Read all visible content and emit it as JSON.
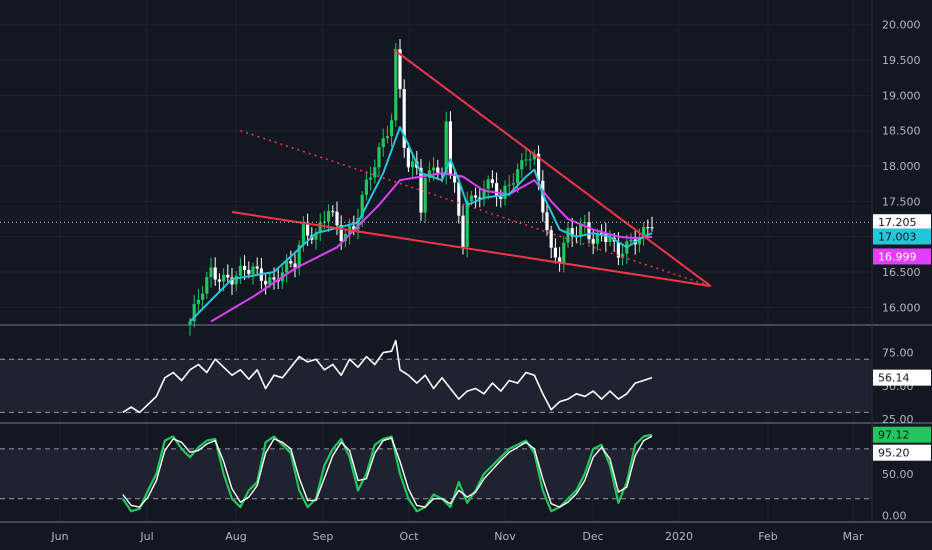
{
  "chart_data": [
    {
      "type": "candlestick",
      "panel": "price",
      "x_labels": [
        "Jun",
        "Jul",
        "Aug",
        "Sep",
        "Oct",
        "Nov",
        "Dec",
        "2020",
        "Feb",
        "Mar"
      ],
      "y_ticks": [
        "16.000",
        "16.500",
        "17.000",
        "17.500",
        "18.000",
        "18.500",
        "19.000",
        "19.500",
        "20.000"
      ],
      "ylim": [
        15.75,
        20.35
      ],
      "last_price_label": "17.205",
      "ma_fast_label": "17.003",
      "ma_slow_label": "16.999",
      "close_path": [
        [
          0.0,
          15.8
        ],
        [
          5.0,
          16.5
        ],
        [
          10.0,
          16.4
        ],
        [
          15.0,
          16.55
        ],
        [
          20.0,
          16.35
        ],
        [
          25.0,
          16.65
        ],
        [
          27.0,
          17.15
        ],
        [
          30.0,
          17.0
        ],
        [
          33.0,
          17.35
        ],
        [
          36.0,
          17.05
        ],
        [
          39.0,
          17.15
        ],
        [
          42.0,
          17.7
        ],
        [
          44.0,
          18.0
        ],
        [
          46.0,
          18.4
        ],
        [
          48.0,
          18.7
        ],
        [
          49.0,
          19.6
        ],
        [
          50.0,
          19.1
        ],
        [
          51.0,
          18.3
        ],
        [
          52.0,
          17.9
        ],
        [
          54.0,
          18.0
        ],
        [
          55.0,
          17.4
        ],
        [
          56.0,
          17.8
        ],
        [
          58.0,
          18.1
        ],
        [
          60.0,
          17.8
        ],
        [
          61.0,
          18.6
        ],
        [
          62.0,
          17.9
        ],
        [
          63.0,
          17.7
        ],
        [
          64.0,
          17.2
        ],
        [
          65.0,
          16.9
        ],
        [
          66.0,
          17.6
        ],
        [
          68.0,
          17.55
        ],
        [
          70.0,
          17.7
        ],
        [
          72.0,
          17.7
        ],
        [
          74.0,
          17.5
        ],
        [
          76.0,
          17.8
        ],
        [
          78.0,
          17.95
        ],
        [
          80.0,
          18.15
        ],
        [
          82.0,
          18.05
        ],
        [
          84.0,
          17.4
        ],
        [
          86.0,
          16.8
        ],
        [
          88.0,
          16.75
        ],
        [
          90.0,
          17.05
        ],
        [
          92.0,
          17.0
        ],
        [
          94.0,
          17.15
        ],
        [
          96.0,
          16.95
        ],
        [
          98.0,
          17.1
        ],
        [
          100.0,
          16.95
        ],
        [
          102.0,
          16.7
        ],
        [
          104.0,
          16.85
        ],
        [
          106.0,
          17.0
        ],
        [
          108.0,
          17.1
        ],
        [
          110.0,
          17.2
        ]
      ],
      "ma_fast": [
        [
          0.0,
          15.8
        ],
        [
          10.0,
          16.4
        ],
        [
          20.0,
          16.5
        ],
        [
          30.0,
          17.05
        ],
        [
          40.0,
          17.2
        ],
        [
          46.0,
          17.9
        ],
        [
          50.0,
          18.55
        ],
        [
          52.0,
          18.3
        ],
        [
          55.0,
          17.9
        ],
        [
          60.0,
          17.8
        ],
        [
          62.0,
          18.1
        ],
        [
          64.0,
          17.8
        ],
        [
          66.0,
          17.45
        ],
        [
          70.0,
          17.55
        ],
        [
          76.0,
          17.6
        ],
        [
          80.0,
          17.85
        ],
        [
          82.0,
          17.95
        ],
        [
          84.0,
          17.6
        ],
        [
          88.0,
          17.1
        ],
        [
          92.0,
          17.0
        ],
        [
          96.0,
          17.05
        ],
        [
          100.0,
          17.0
        ],
        [
          104.0,
          16.85
        ],
        [
          108.0,
          17.0
        ],
        [
          110.0,
          17.05
        ]
      ],
      "ma_slow": [
        [
          5.0,
          15.8
        ],
        [
          15.0,
          16.15
        ],
        [
          25.0,
          16.55
        ],
        [
          35.0,
          16.85
        ],
        [
          45.0,
          17.45
        ],
        [
          50.0,
          17.8
        ],
        [
          55.0,
          17.85
        ],
        [
          60.0,
          17.9
        ],
        [
          65.0,
          17.85
        ],
        [
          70.0,
          17.65
        ],
        [
          76.0,
          17.6
        ],
        [
          82.0,
          17.8
        ],
        [
          86.0,
          17.5
        ],
        [
          90.0,
          17.25
        ],
        [
          96.0,
          17.1
        ],
        [
          102.0,
          17.0
        ],
        [
          106.0,
          16.98
        ],
        [
          110.0,
          17.0
        ]
      ],
      "trendlines": [
        {
          "style": "solid",
          "color": "#f23645",
          "from": [
            48.5,
            19.65
          ],
          "to": [
            124.0,
            16.3
          ]
        },
        {
          "style": "solid",
          "color": "#f23645",
          "from": [
            10.0,
            17.35
          ],
          "to": [
            124.0,
            16.3
          ]
        },
        {
          "style": "dotted",
          "color": "#f23645",
          "from": [
            12.0,
            18.5
          ],
          "to": [
            124.0,
            16.3
          ]
        }
      ],
      "price_line_value": 17.205
    },
    {
      "type": "line",
      "panel": "rsi",
      "y_ticks": [
        "25.00",
        "50.00",
        "75.00"
      ],
      "ylim": [
        22,
        95
      ],
      "bands": [
        30,
        70
      ],
      "last_value_label": "56.14",
      "path": [
        [
          -16.0,
          30
        ],
        [
          -14.0,
          34
        ],
        [
          -12.0,
          30
        ],
        [
          -10.0,
          36
        ],
        [
          -8.0,
          42
        ],
        [
          -6.0,
          56
        ],
        [
          -4.0,
          60
        ],
        [
          -2.0,
          54
        ],
        [
          0.0,
          62
        ],
        [
          2.0,
          66
        ],
        [
          4.0,
          60
        ],
        [
          6.0,
          70
        ],
        [
          8.0,
          64
        ],
        [
          10.0,
          58
        ],
        [
          12.0,
          62
        ],
        [
          14.0,
          55
        ],
        [
          16.0,
          62
        ],
        [
          18.0,
          48
        ],
        [
          20.0,
          58
        ],
        [
          22.0,
          56
        ],
        [
          24.0,
          64
        ],
        [
          26.0,
          72
        ],
        [
          28.0,
          68
        ],
        [
          30.0,
          70
        ],
        [
          32.0,
          62
        ],
        [
          34.0,
          66
        ],
        [
          36.0,
          58
        ],
        [
          38.0,
          70
        ],
        [
          40.0,
          64
        ],
        [
          42.0,
          72
        ],
        [
          44.0,
          66
        ],
        [
          46.0,
          75
        ],
        [
          48.0,
          76
        ],
        [
          49.0,
          84
        ],
        [
          50.0,
          62
        ],
        [
          52.0,
          58
        ],
        [
          54.0,
          52
        ],
        [
          56.0,
          58
        ],
        [
          58.0,
          48
        ],
        [
          60.0,
          56
        ],
        [
          62.0,
          48
        ],
        [
          64.0,
          40
        ],
        [
          66.0,
          46
        ],
        [
          68.0,
          48
        ],
        [
          70.0,
          44
        ],
        [
          72.0,
          52
        ],
        [
          74.0,
          46
        ],
        [
          76.0,
          54
        ],
        [
          78.0,
          52
        ],
        [
          80.0,
          60
        ],
        [
          82.0,
          58
        ],
        [
          84.0,
          44
        ],
        [
          86.0,
          32
        ],
        [
          88.0,
          38
        ],
        [
          90.0,
          40
        ],
        [
          92.0,
          44
        ],
        [
          94.0,
          42
        ],
        [
          96.0,
          46
        ],
        [
          98.0,
          40
        ],
        [
          100.0,
          46
        ],
        [
          102.0,
          40
        ],
        [
          104.0,
          44
        ],
        [
          106.0,
          52
        ],
        [
          108.0,
          54
        ],
        [
          110.0,
          56.14
        ]
      ]
    },
    {
      "type": "line",
      "panel": "stochastic",
      "y_ticks": [
        "0.00",
        "50.00"
      ],
      "ylim": [
        -8,
        110
      ],
      "bands": [
        20,
        80
      ],
      "k_label": "97.12",
      "d_label": "95.20",
      "k_path": [
        [
          -16.0,
          20
        ],
        [
          -14.0,
          5
        ],
        [
          -12.0,
          8
        ],
        [
          -10.0,
          30
        ],
        [
          -8.0,
          50
        ],
        [
          -6.0,
          90
        ],
        [
          -4.0,
          95
        ],
        [
          -2.0,
          80
        ],
        [
          0.0,
          70
        ],
        [
          2.0,
          82
        ],
        [
          4.0,
          90
        ],
        [
          6.0,
          92
        ],
        [
          8.0,
          50
        ],
        [
          10.0,
          20
        ],
        [
          12.0,
          10
        ],
        [
          14.0,
          30
        ],
        [
          16.0,
          40
        ],
        [
          18.0,
          88
        ],
        [
          20.0,
          95
        ],
        [
          22.0,
          85
        ],
        [
          24.0,
          75
        ],
        [
          26.0,
          30
        ],
        [
          28.0,
          10
        ],
        [
          30.0,
          20
        ],
        [
          32.0,
          60
        ],
        [
          34.0,
          80
        ],
        [
          36.0,
          92
        ],
        [
          38.0,
          70
        ],
        [
          40.0,
          30
        ],
        [
          42.0,
          50
        ],
        [
          44.0,
          85
        ],
        [
          46.0,
          92
        ],
        [
          48.0,
          95
        ],
        [
          50.0,
          50
        ],
        [
          52.0,
          20
        ],
        [
          54.0,
          5
        ],
        [
          56.0,
          10
        ],
        [
          58.0,
          25
        ],
        [
          60.0,
          20
        ],
        [
          62.0,
          10
        ],
        [
          64.0,
          40
        ],
        [
          66.0,
          15
        ],
        [
          68.0,
          30
        ],
        [
          70.0,
          50
        ],
        [
          72.0,
          60
        ],
        [
          74.0,
          70
        ],
        [
          76.0,
          80
        ],
        [
          78.0,
          85
        ],
        [
          80.0,
          90
        ],
        [
          82.0,
          75
        ],
        [
          84.0,
          30
        ],
        [
          86.0,
          5
        ],
        [
          88.0,
          10
        ],
        [
          90.0,
          20
        ],
        [
          92.0,
          30
        ],
        [
          94.0,
          50
        ],
        [
          96.0,
          80
        ],
        [
          98.0,
          85
        ],
        [
          100.0,
          60
        ],
        [
          102.0,
          15
        ],
        [
          104.0,
          40
        ],
        [
          106.0,
          85
        ],
        [
          108.0,
          95
        ],
        [
          110.0,
          97.12
        ]
      ],
      "d_path": [
        [
          -16.0,
          25
        ],
        [
          -14.0,
          12
        ],
        [
          -12.0,
          10
        ],
        [
          -10.0,
          22
        ],
        [
          -8.0,
          42
        ],
        [
          -6.0,
          78
        ],
        [
          -4.0,
          92
        ],
        [
          -2.0,
          88
        ],
        [
          0.0,
          76
        ],
        [
          2.0,
          78
        ],
        [
          4.0,
          86
        ],
        [
          6.0,
          90
        ],
        [
          8.0,
          65
        ],
        [
          10.0,
          32
        ],
        [
          12.0,
          16
        ],
        [
          14.0,
          22
        ],
        [
          16.0,
          36
        ],
        [
          18.0,
          75
        ],
        [
          20.0,
          92
        ],
        [
          22.0,
          88
        ],
        [
          24.0,
          80
        ],
        [
          26.0,
          45
        ],
        [
          28.0,
          18
        ],
        [
          30.0,
          18
        ],
        [
          32.0,
          45
        ],
        [
          34.0,
          72
        ],
        [
          36.0,
          88
        ],
        [
          38.0,
          78
        ],
        [
          40.0,
          42
        ],
        [
          42.0,
          44
        ],
        [
          44.0,
          75
        ],
        [
          46.0,
          90
        ],
        [
          48.0,
          93
        ],
        [
          50.0,
          65
        ],
        [
          52.0,
          32
        ],
        [
          54.0,
          12
        ],
        [
          56.0,
          10
        ],
        [
          58.0,
          20
        ],
        [
          60.0,
          20
        ],
        [
          62.0,
          14
        ],
        [
          64.0,
          30
        ],
        [
          66.0,
          22
        ],
        [
          68.0,
          28
        ],
        [
          70.0,
          44
        ],
        [
          72.0,
          55
        ],
        [
          74.0,
          66
        ],
        [
          76.0,
          76
        ],
        [
          78.0,
          82
        ],
        [
          80.0,
          88
        ],
        [
          82.0,
          80
        ],
        [
          84.0,
          44
        ],
        [
          86.0,
          14
        ],
        [
          88.0,
          10
        ],
        [
          90.0,
          16
        ],
        [
          92.0,
          26
        ],
        [
          94.0,
          42
        ],
        [
          96.0,
          70
        ],
        [
          98.0,
          82
        ],
        [
          100.0,
          68
        ],
        [
          102.0,
          28
        ],
        [
          104.0,
          34
        ],
        [
          106.0,
          72
        ],
        [
          108.0,
          90
        ],
        [
          110.0,
          95.2
        ]
      ]
    }
  ],
  "colors": {
    "background": "#131722",
    "grid": "#1e2230",
    "axis_text": "#b2b5be",
    "up": "#22c55e",
    "down": "#ffffff",
    "ma_fast": "#26c6da",
    "ma_slow": "#e040fb",
    "trend": "#f23645",
    "rsi": "#ffffff",
    "stoch_k": "#22c55e",
    "stoch_d": "#ffffff",
    "band_fill": "#1f2330"
  }
}
